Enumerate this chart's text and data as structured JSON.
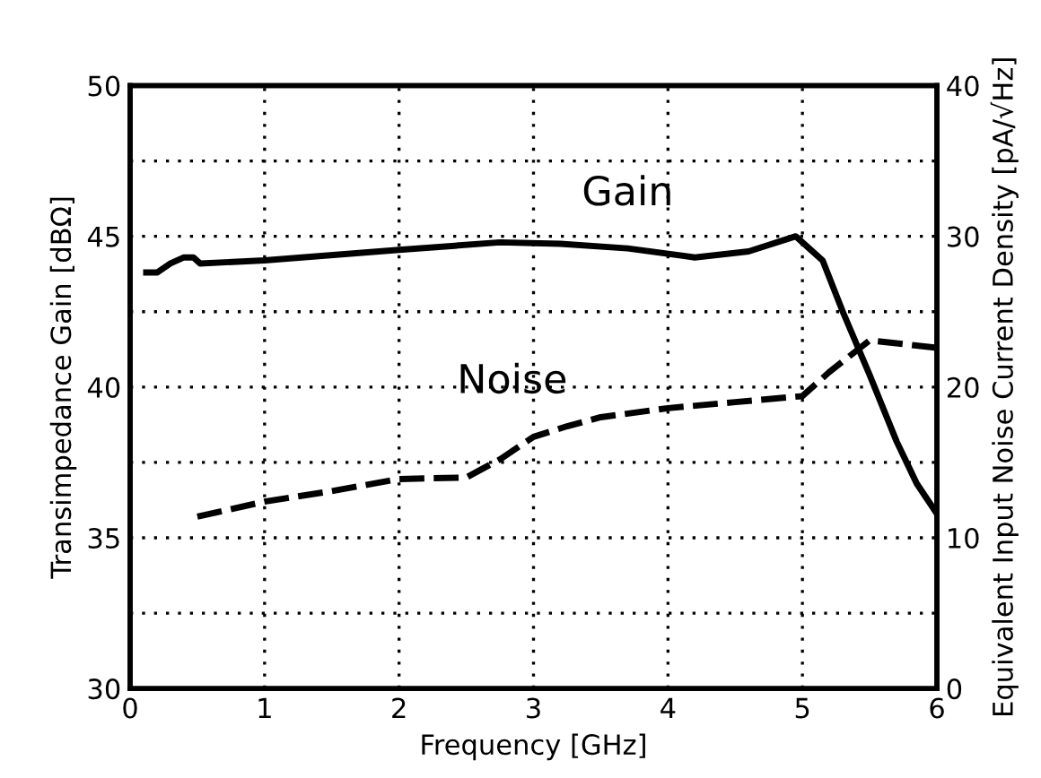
{
  "chart_data": {
    "type": "line",
    "xlabel": "Frequency [GHz]",
    "ylabel": "Transimpedance Gain [dBΩ]",
    "y2label": "Equivalent Input Noise Current Density [pA/√Hz]",
    "xlim": [
      0,
      6
    ],
    "xticks": [
      0,
      1,
      2,
      3,
      4,
      5,
      6
    ],
    "ylim": [
      30,
      50
    ],
    "yticks": [
      30,
      {
        "value": 32.5,
        "label": null
      },
      35,
      {
        "value": 37.5,
        "label": null
      },
      40,
      {
        "value": 42.5,
        "label": null
      },
      45,
      {
        "value": 47.5,
        "label": null
      },
      50
    ],
    "y2lim": [
      0,
      40
    ],
    "y2ticks": [
      0,
      10,
      20,
      30,
      40
    ],
    "grid": true,
    "marker": "none",
    "series": [
      {
        "name": "Gain",
        "color": "#000000",
        "line_style": "solid",
        "x": [
          0.12,
          0.2,
          0.3,
          0.4,
          0.47,
          0.52,
          1,
          2,
          2.75,
          3.2,
          3.7,
          4.2,
          4.6,
          4.95,
          5.15,
          5.3,
          5.5,
          5.7,
          5.85,
          6
        ],
        "values": [
          43.8,
          43.8,
          44.1,
          44.3,
          44.3,
          44.1,
          44.2,
          44.55,
          44.8,
          44.75,
          44.6,
          44.3,
          44.5,
          45.0,
          44.2,
          42.5,
          40.4,
          38.2,
          36.8,
          35.8
        ]
      },
      {
        "name": "Noise",
        "color": "#000000",
        "line_style": "dashed",
        "axis": "y2",
        "x": [
          0.5,
          1,
          1.5,
          2,
          2.5,
          2.75,
          3,
          3.25,
          3.5,
          4,
          4.5,
          5,
          5.2,
          5.5,
          6
        ],
        "values": [
          11.4,
          12.4,
          13.1,
          13.9,
          14.0,
          15.2,
          16.7,
          17.4,
          18.0,
          18.6,
          19.0,
          19.4,
          21.0,
          23.1,
          22.6
        ]
      }
    ]
  }
}
